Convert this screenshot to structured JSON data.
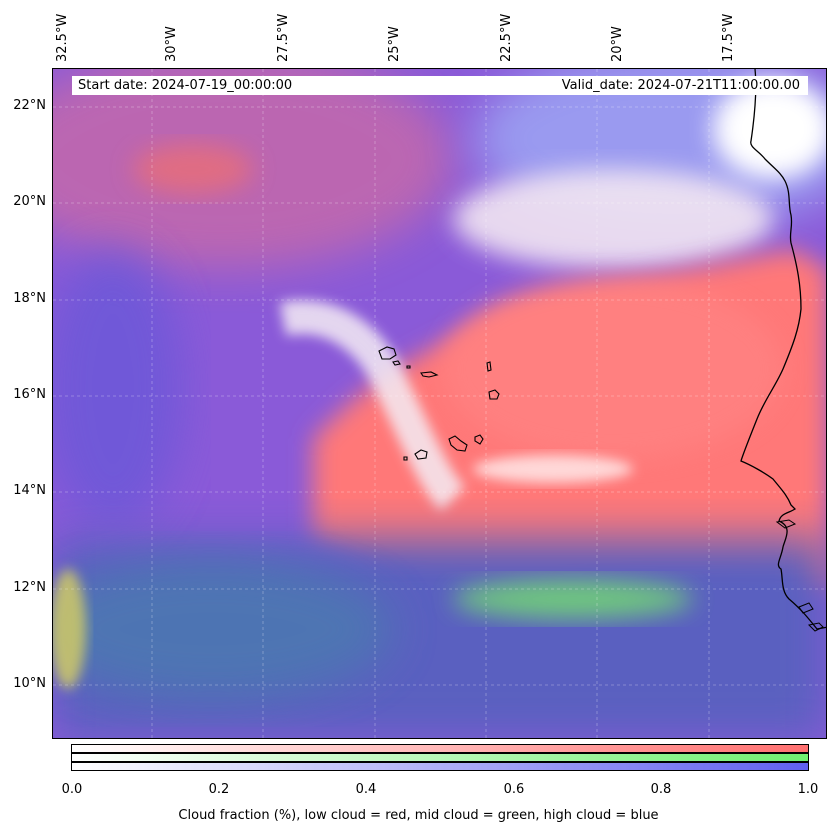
{
  "map": {
    "start_date": "Start date: 2024-07-19_00:00:00",
    "valid_date": "Valid_date: 2024-07-21T11:00:00.00",
    "lon_labels": [
      "32.5°W",
      "30°W",
      "27.5°W",
      "25°W",
      "22.5°W",
      "20°W",
      "17.5°W"
    ],
    "lat_labels": [
      "22°N",
      "20°N",
      "18°N",
      "16°N",
      "14°N",
      "12°N",
      "10°N"
    ],
    "colors": {
      "low_cloud": "#ff7070",
      "mid_cloud": "#70f070",
      "high_cloud": "#6060f0",
      "background_purple": "#7a4fd0"
    }
  },
  "colorbar": {
    "ticks": [
      "0.0",
      "0.2",
      "0.4",
      "0.6",
      "0.8",
      "1.0"
    ],
    "label": "Cloud fraction (%), low cloud = red, mid cloud = green, high cloud = blue"
  }
}
